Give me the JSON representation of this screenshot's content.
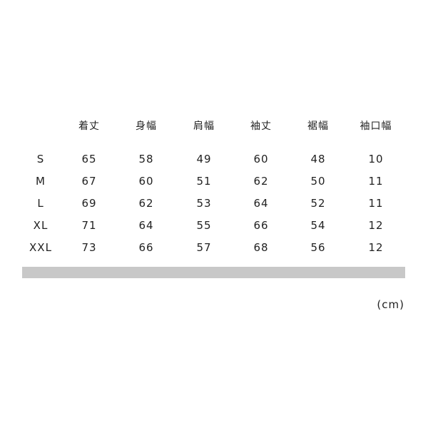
{
  "table": {
    "headers": [
      "",
      "着丈",
      "身幅",
      "肩幅",
      "袖丈",
      "裾幅",
      "袖口幅"
    ],
    "rows": [
      [
        "S",
        "65",
        "58",
        "49",
        "60",
        "48",
        "10"
      ],
      [
        "M",
        "67",
        "60",
        "51",
        "62",
        "50",
        "11"
      ],
      [
        "L",
        "69",
        "62",
        "53",
        "64",
        "52",
        "11"
      ],
      [
        "XL",
        "71",
        "64",
        "55",
        "66",
        "54",
        "12"
      ],
      [
        "XXL",
        "73",
        "66",
        "57",
        "68",
        "56",
        "12"
      ]
    ]
  },
  "unit": "(cm)",
  "colors": {
    "bar": "#c8c8c8",
    "text": "#222222"
  }
}
